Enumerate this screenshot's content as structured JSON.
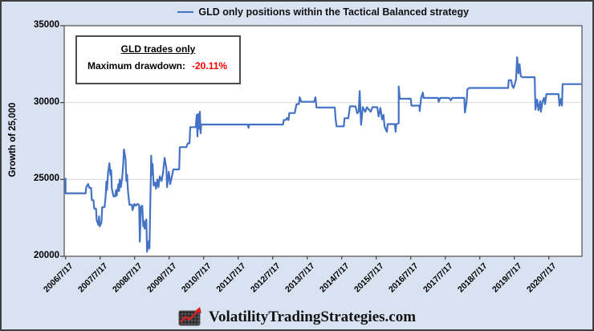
{
  "title": {
    "text": "GLD only positions within the Tactical Balanced strategy",
    "legend_color": "#4472c4"
  },
  "annotation": {
    "heading": "GLD trades only",
    "label": "Maximum drawdown:",
    "value": "-20.11%",
    "value_color": "#ff0000"
  },
  "y_axis": {
    "title": "Growth of 25,000",
    "min": 20000,
    "max": 35000,
    "tick_values": [
      35000,
      30000,
      25000,
      20000
    ],
    "tick_labels": [
      "35000",
      "30000",
      "25000",
      "20000"
    ],
    "gridline_values": [
      30000,
      25000
    ]
  },
  "x_axis": {
    "min": 2006.5,
    "max": 2021.5,
    "tick_values": [
      2006.54,
      2007.54,
      2008.54,
      2009.54,
      2010.54,
      2011.54,
      2012.54,
      2013.54,
      2014.54,
      2015.54,
      2016.54,
      2017.54,
      2018.54,
      2019.54,
      2020.54
    ],
    "tick_labels": [
      "2006/7/17",
      "2007/7/17",
      "2008/7/17",
      "2009/7/17",
      "2010/7/17",
      "2011/7/17",
      "2012/7/17",
      "2013/7/17",
      "2014/7/17",
      "2015/7/17",
      "2016/7/17",
      "2017/7/17",
      "2018/7/17",
      "2019/7/17",
      "2020/7/17"
    ]
  },
  "footer": {
    "text": "VolatilityTradingStrategies.com",
    "logo": "chart-up-logo"
  },
  "colors": {
    "background": "#d9e2f1",
    "plot_background": "#ffffff",
    "line": "#4472c4",
    "gridline": "#d9d9d9",
    "axis": "#595959",
    "tick": "#404040",
    "drawdown_value": "#ff0000",
    "logo_arrow": "#e02020"
  },
  "chart_data": {
    "type": "line",
    "title": "GLD only positions within the Tactical Balanced strategy",
    "xlabel": "",
    "ylabel": "Growth of 25,000",
    "ylim": [
      20000,
      35000
    ],
    "grid": "horizontal",
    "legend_position": "top",
    "series": [
      {
        "name": "GLD only positions within the Tactical Balanced strategy",
        "color": "#4472c4",
        "points": [
          [
            2006.54,
            25050
          ],
          [
            2006.54,
            24100
          ],
          [
            2007.12,
            24100
          ],
          [
            2007.14,
            24500
          ],
          [
            2007.19,
            24700
          ],
          [
            2007.23,
            24450
          ],
          [
            2007.28,
            24450
          ],
          [
            2007.3,
            23650
          ],
          [
            2007.35,
            23650
          ],
          [
            2007.37,
            23100
          ],
          [
            2007.42,
            23100
          ],
          [
            2007.44,
            22350
          ],
          [
            2007.49,
            22050
          ],
          [
            2007.51,
            22600
          ],
          [
            2007.53,
            21950
          ],
          [
            2007.58,
            22200
          ],
          [
            2007.6,
            23200
          ],
          [
            2007.67,
            23200
          ],
          [
            2007.7,
            23900
          ],
          [
            2007.72,
            24850
          ],
          [
            2007.74,
            24300
          ],
          [
            2007.77,
            25450
          ],
          [
            2007.79,
            25750
          ],
          [
            2007.81,
            26050
          ],
          [
            2007.84,
            25300
          ],
          [
            2007.86,
            25600
          ],
          [
            2007.88,
            24400
          ],
          [
            2007.93,
            23900
          ],
          [
            2007.98,
            23900
          ],
          [
            2008.0,
            24300
          ],
          [
            2008.02,
            23950
          ],
          [
            2008.07,
            24700
          ],
          [
            2008.09,
            24250
          ],
          [
            2008.11,
            25000
          ],
          [
            2008.14,
            24500
          ],
          [
            2008.18,
            25100
          ],
          [
            2008.21,
            26000
          ],
          [
            2008.23,
            26950
          ],
          [
            2008.28,
            26300
          ],
          [
            2008.3,
            24900
          ],
          [
            2008.32,
            25300
          ],
          [
            2008.35,
            24200
          ],
          [
            2008.39,
            23350
          ],
          [
            2008.46,
            23350
          ],
          [
            2008.48,
            23000
          ],
          [
            2008.53,
            23400
          ],
          [
            2008.58,
            23300
          ],
          [
            2008.62,
            23400
          ],
          [
            2008.67,
            23350
          ],
          [
            2008.69,
            20950
          ],
          [
            2008.72,
            23200
          ],
          [
            2008.76,
            23300
          ],
          [
            2008.79,
            21950
          ],
          [
            2008.81,
            22300
          ],
          [
            2008.83,
            21800
          ],
          [
            2008.88,
            22400
          ],
          [
            2008.9,
            20300
          ],
          [
            2008.95,
            21000
          ],
          [
            2008.97,
            20500
          ],
          [
            2008.99,
            23000
          ],
          [
            2009.02,
            26550
          ],
          [
            2009.04,
            25300
          ],
          [
            2009.06,
            26000
          ],
          [
            2009.09,
            24600
          ],
          [
            2009.13,
            24800
          ],
          [
            2009.16,
            24400
          ],
          [
            2009.2,
            25000
          ],
          [
            2009.23,
            24500
          ],
          [
            2009.27,
            25200
          ],
          [
            2009.32,
            24900
          ],
          [
            2009.36,
            25400
          ],
          [
            2009.41,
            26400
          ],
          [
            2009.46,
            25700
          ],
          [
            2009.48,
            24500
          ],
          [
            2009.53,
            25500
          ],
          [
            2009.57,
            24700
          ],
          [
            2009.62,
            25200
          ],
          [
            2009.66,
            25650
          ],
          [
            2009.83,
            25650
          ],
          [
            2009.85,
            27100
          ],
          [
            2010.04,
            27100
          ],
          [
            2010.08,
            27350
          ],
          [
            2010.13,
            27350
          ],
          [
            2010.15,
            28400
          ],
          [
            2010.31,
            28400
          ],
          [
            2010.34,
            29200
          ],
          [
            2010.36,
            27800
          ],
          [
            2010.38,
            29250
          ],
          [
            2010.41,
            28300
          ],
          [
            2010.43,
            29400
          ],
          [
            2010.45,
            28000
          ],
          [
            2010.47,
            28570
          ],
          [
            2011.82,
            28570
          ],
          [
            2011.84,
            28350
          ],
          [
            2011.86,
            28570
          ],
          [
            2012.84,
            28570
          ],
          [
            2012.86,
            28870
          ],
          [
            2012.93,
            28870
          ],
          [
            2012.95,
            29000
          ],
          [
            2013.0,
            28870
          ],
          [
            2013.02,
            29320
          ],
          [
            2013.18,
            29320
          ],
          [
            2013.23,
            29900
          ],
          [
            2013.3,
            29900
          ],
          [
            2013.32,
            30350
          ],
          [
            2013.37,
            30050
          ],
          [
            2013.74,
            30050
          ],
          [
            2013.78,
            30350
          ],
          [
            2013.81,
            29680
          ],
          [
            2014.34,
            29680
          ],
          [
            2014.36,
            28980
          ],
          [
            2014.39,
            28450
          ],
          [
            2014.6,
            28450
          ],
          [
            2014.62,
            28980
          ],
          [
            2014.73,
            28980
          ],
          [
            2014.78,
            29750
          ],
          [
            2014.94,
            29750
          ],
          [
            2014.99,
            29300
          ],
          [
            2015.03,
            29400
          ],
          [
            2015.06,
            30750
          ],
          [
            2015.1,
            28550
          ],
          [
            2015.15,
            29700
          ],
          [
            2015.22,
            29400
          ],
          [
            2015.27,
            29700
          ],
          [
            2015.38,
            29400
          ],
          [
            2015.43,
            29700
          ],
          [
            2015.57,
            29700
          ],
          [
            2015.61,
            29100
          ],
          [
            2015.66,
            29650
          ],
          [
            2015.71,
            28900
          ],
          [
            2015.75,
            29200
          ],
          [
            2015.78,
            28450
          ],
          [
            2015.85,
            28100
          ],
          [
            2015.87,
            28600
          ],
          [
            2016.08,
            28600
          ],
          [
            2016.1,
            28100
          ],
          [
            2016.12,
            28600
          ],
          [
            2016.19,
            28650
          ],
          [
            2016.19,
            31050
          ],
          [
            2016.22,
            30250
          ],
          [
            2016.54,
            30250
          ],
          [
            2016.56,
            29800
          ],
          [
            2016.79,
            29800
          ],
          [
            2016.8,
            29450
          ],
          [
            2016.84,
            30300
          ],
          [
            2016.89,
            30650
          ],
          [
            2016.91,
            30300
          ],
          [
            2017.33,
            30300
          ],
          [
            2017.35,
            30050
          ],
          [
            2017.39,
            30300
          ],
          [
            2017.65,
            30300
          ],
          [
            2017.7,
            30150
          ],
          [
            2017.74,
            30300
          ],
          [
            2018.09,
            30300
          ],
          [
            2018.11,
            29350
          ],
          [
            2018.16,
            30100
          ],
          [
            2018.18,
            30850
          ],
          [
            2018.23,
            30950
          ],
          [
            2019.36,
            30950
          ],
          [
            2019.38,
            31450
          ],
          [
            2019.45,
            31450
          ],
          [
            2019.48,
            31100
          ],
          [
            2019.52,
            30950
          ],
          [
            2019.59,
            31500
          ],
          [
            2019.62,
            32950
          ],
          [
            2019.66,
            31900
          ],
          [
            2019.69,
            32500
          ],
          [
            2019.73,
            31700
          ],
          [
            2019.78,
            31650
          ],
          [
            2020.13,
            31650
          ],
          [
            2020.15,
            29550
          ],
          [
            2020.2,
            30200
          ],
          [
            2020.24,
            29500
          ],
          [
            2020.29,
            30100
          ],
          [
            2020.31,
            29400
          ],
          [
            2020.36,
            30100
          ],
          [
            2020.4,
            30300
          ],
          [
            2020.43,
            29900
          ],
          [
            2020.47,
            30550
          ],
          [
            2020.82,
            30550
          ],
          [
            2020.85,
            29800
          ],
          [
            2020.89,
            30250
          ],
          [
            2020.92,
            29800
          ],
          [
            2020.94,
            31200
          ],
          [
            2021.48,
            31200
          ]
        ]
      }
    ]
  }
}
